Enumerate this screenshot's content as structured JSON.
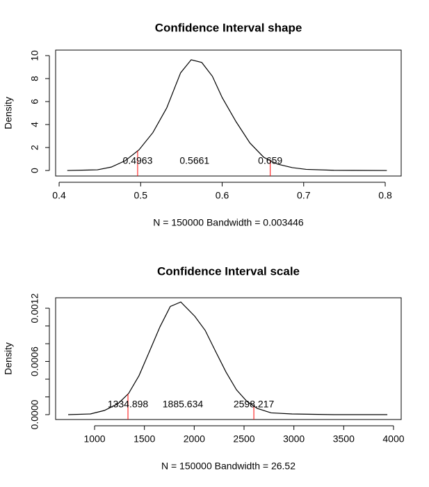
{
  "chart_data": [
    {
      "type": "line",
      "title": "Confidence Interval shape",
      "xlabel": "N = 150000   Bandwidth = 0.003446",
      "ylabel": "Density",
      "x": [
        0.41,
        0.447,
        0.464,
        0.481,
        0.498,
        0.515,
        0.532,
        0.549,
        0.562,
        0.575,
        0.588,
        0.6,
        0.617,
        0.634,
        0.651,
        0.668,
        0.686,
        0.703,
        0.737,
        0.802
      ],
      "values": [
        0,
        0.06,
        0.3,
        0.85,
        1.8,
        3.3,
        5.45,
        8.5,
        9.64,
        9.4,
        8.2,
        6.35,
        4.25,
        2.4,
        1.15,
        0.55,
        0.25,
        0.1,
        0.02,
        0
      ],
      "color": "#000000",
      "interval": {
        "lower": 0.4963,
        "median": 0.5661,
        "upper": 0.659
      },
      "interval_color": "#ff0000",
      "xlim": [
        0.3957,
        0.8196
      ],
      "ylim": [
        -0.48,
        10.48
      ],
      "xticks": [
        0.4,
        0.5,
        0.6,
        0.7,
        0.8
      ],
      "yticks": [
        0,
        2,
        4,
        6,
        8,
        10
      ]
    },
    {
      "type": "line",
      "title": "Confidence Interval scale",
      "xlabel": "N = 150000   Bandwidth = 26.52",
      "ylabel": "Density",
      "x": [
        735,
        958,
        1098,
        1237,
        1342,
        1446,
        1551,
        1656,
        1760,
        1865,
        2005,
        2110,
        2214,
        2319,
        2424,
        2528,
        2633,
        2772,
        2981,
        3400,
        3938
      ],
      "values": [
        0,
        8e-06,
        4.7e-05,
        0.000125,
        0.00024,
        0.00044,
        0.000714,
        0.00099,
        0.00122,
        0.00127,
        0.00111,
        0.00095,
        0.000714,
        0.00048,
        0.00028,
        0.00015,
        7e-05,
        2e-05,
        8e-06,
        0,
        0
      ],
      "color": "#000000",
      "interval": {
        "lower": 1334.898,
        "median": 1885.634,
        "upper": 2598.217
      },
      "interval_color": "#ff0000",
      "xlim": [
        609,
        4077
      ],
      "ylim": [
        -5.49e-05,
        0.001318
      ],
      "xticks": [
        1000,
        1500,
        2000,
        2500,
        3000,
        3500,
        4000
      ],
      "yticks": [
        {
          "value": 0,
          "label": "0.0000"
        },
        {
          "value": 0.0006,
          "label": "0.0006"
        },
        {
          "value": 0.0012,
          "label": "0.0012"
        }
      ],
      "minor_yticks": [
        0.0002,
        0.0004,
        0.0008,
        0.001
      ]
    }
  ]
}
